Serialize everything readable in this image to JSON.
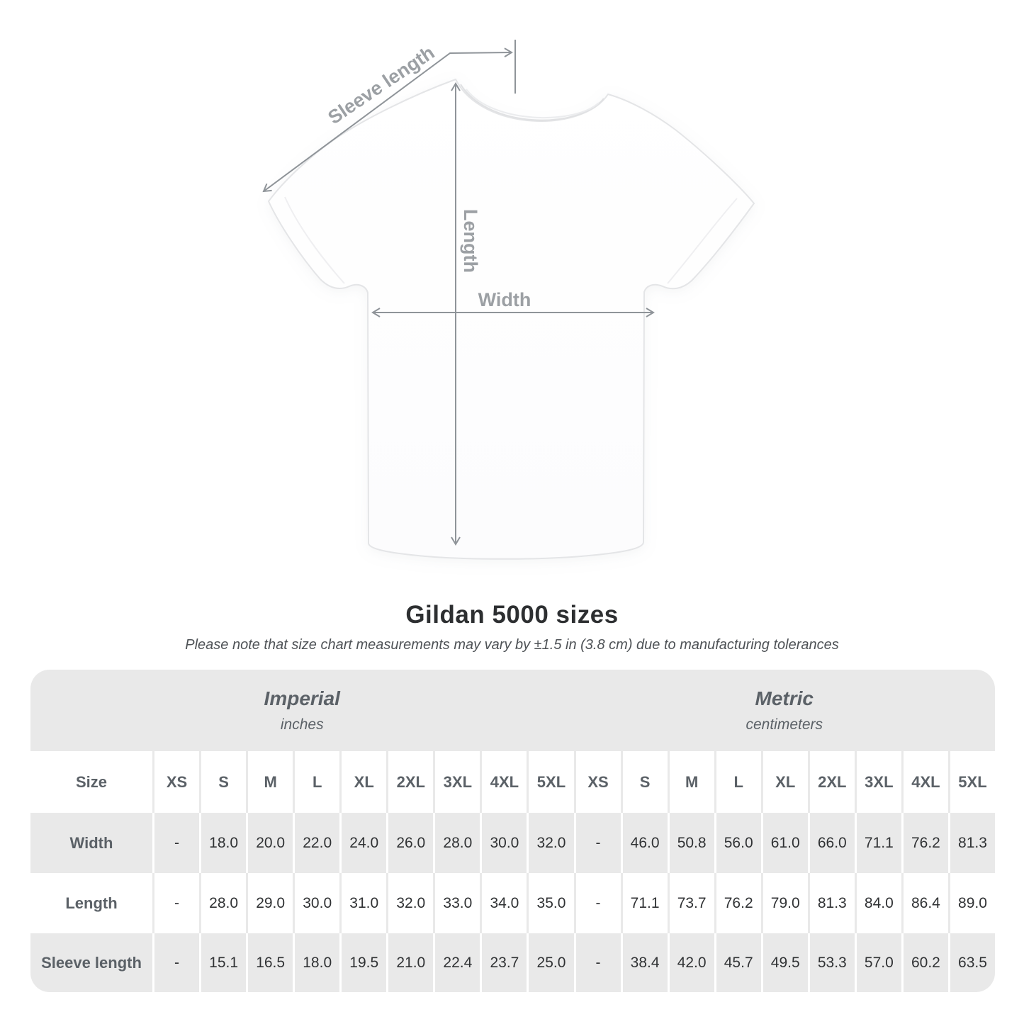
{
  "diagram": {
    "labels": {
      "sleeve_length": "Sleeve length",
      "length": "Length",
      "width": "Width"
    }
  },
  "chart_data": {
    "type": "table",
    "title": "Gildan 5000 sizes",
    "subtitle": "Please note that size chart measurements may vary by ±1.5 in (3.8 cm) due to manufacturing tolerances",
    "unit_groups": [
      {
        "label": "Imperial",
        "sublabel": "inches"
      },
      {
        "label": "Metric",
        "sublabel": "centimeters"
      }
    ],
    "size_header": "Size",
    "sizes": [
      "XS",
      "S",
      "M",
      "L",
      "XL",
      "2XL",
      "3XL",
      "4XL",
      "5XL"
    ],
    "rows": [
      {
        "label": "Width",
        "imperial": [
          "-",
          "18.0",
          "20.0",
          "22.0",
          "24.0",
          "26.0",
          "28.0",
          "30.0",
          "32.0"
        ],
        "metric": [
          "-",
          "46.0",
          "50.8",
          "56.0",
          "61.0",
          "66.0",
          "71.1",
          "76.2",
          "81.3"
        ]
      },
      {
        "label": "Length",
        "imperial": [
          "-",
          "28.0",
          "29.0",
          "30.0",
          "31.0",
          "32.0",
          "33.0",
          "34.0",
          "35.0"
        ],
        "metric": [
          "-",
          "71.1",
          "73.7",
          "76.2",
          "79.0",
          "81.3",
          "84.0",
          "86.4",
          "89.0"
        ]
      },
      {
        "label": "Sleeve length",
        "imperial": [
          "-",
          "15.1",
          "16.5",
          "18.0",
          "19.5",
          "21.0",
          "22.4",
          "23.7",
          "25.0"
        ],
        "metric": [
          "-",
          "38.4",
          "42.0",
          "45.7",
          "49.5",
          "53.3",
          "57.0",
          "60.2",
          "63.5"
        ]
      }
    ]
  },
  "colors": {
    "band_gray": "#e9e9e9",
    "stripe_gray": "#e9e9e9",
    "header_text": "#5b6167",
    "value_text": "#303234",
    "title_text": "#2d2f31",
    "subtitle_text": "#4e5256",
    "arrow": "#8f9499",
    "diagram_label": "#9ca0a4"
  }
}
